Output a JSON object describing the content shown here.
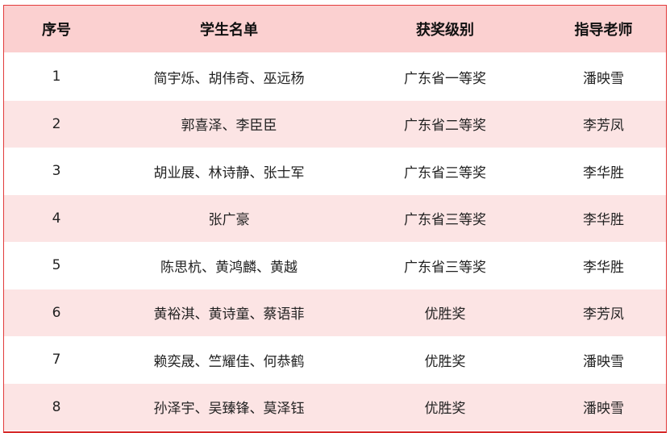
{
  "header": [
    "序号",
    "学生名单",
    "获奖级别",
    "指导老师"
  ],
  "rows": [
    [
      "1",
      "简宇烁、胡伟奇、巫远杨",
      "广东省一等奖",
      "潘映雪"
    ],
    [
      "2",
      "郭喜泽、李臣臣",
      "广东省二等奖",
      "李芳凤"
    ],
    [
      "3",
      "胡业展、林诗静、张士军",
      "广东省三等奖",
      "李华胜"
    ],
    [
      "4",
      "张广豪",
      "广东省三等奖",
      "李华胜"
    ],
    [
      "5",
      "陈思杭、黄鸿麟、黄越",
      "广东省三等奖",
      "李华胜"
    ],
    [
      "6",
      "黄裕淇、黄诗童、蔡语菲",
      "优胜奖",
      "李芳凤"
    ],
    [
      "7",
      "赖奕晟、竺耀佳、何恭鹤",
      "优胜奖",
      "潘映雪"
    ],
    [
      "8",
      "孙泽宇、吴臻锋、莫泽钰",
      "优胜奖",
      "潘映雪"
    ]
  ],
  "colors": {
    "border": "#e23b3b",
    "header_bg": "#fbd0d0",
    "alt_row_bg": "#fce4e4"
  }
}
